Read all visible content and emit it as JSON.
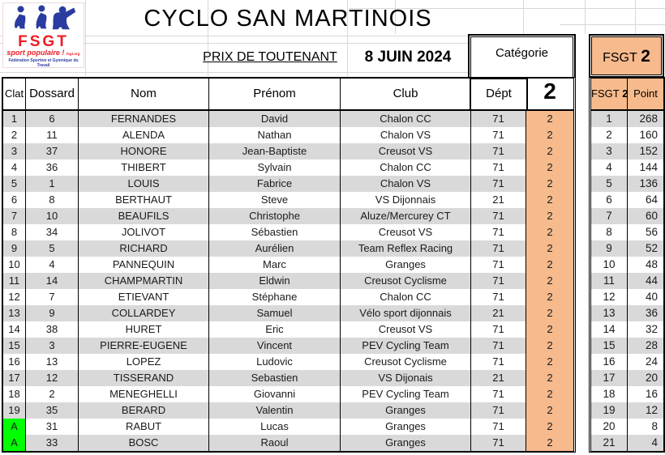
{
  "header": {
    "title": "CYCLO SAN MARTINOIS",
    "race_name": "PRIX DE TOUTENANT",
    "date": "8 JUIN 2024"
  },
  "logo": {
    "acronym": "FSGT",
    "slogan": "sport populaire !",
    "website": "fsgt.org",
    "full_name": "Fédération Sportive et Gymnique du Travail"
  },
  "category_box": {
    "label": "Catégorie",
    "value": "2"
  },
  "table": {
    "headers": {
      "clat": "Clat",
      "dossard": "Dossard",
      "nom": "Nom",
      "prenom": "Prénom",
      "club": "Club",
      "dept": "Dépt"
    },
    "rows": [
      {
        "clat": "1",
        "dossard": "6",
        "nom": "FERNANDES",
        "prenom": "David",
        "club": "Chalon CC",
        "dept": "71",
        "cat": "2"
      },
      {
        "clat": "2",
        "dossard": "11",
        "nom": "ALENDA",
        "prenom": "Nathan",
        "club": "Chalon VS",
        "dept": "71",
        "cat": "2"
      },
      {
        "clat": "3",
        "dossard": "37",
        "nom": "HONORE",
        "prenom": "Jean-Baptiste",
        "club": "Creusot VS",
        "dept": "71",
        "cat": "2"
      },
      {
        "clat": "4",
        "dossard": "36",
        "nom": "THIBERT",
        "prenom": "Sylvain",
        "club": "Chalon CC",
        "dept": "71",
        "cat": "2"
      },
      {
        "clat": "5",
        "dossard": "1",
        "nom": "LOUIS",
        "prenom": "Fabrice",
        "club": "Chalon VS",
        "dept": "71",
        "cat": "2"
      },
      {
        "clat": "6",
        "dossard": "8",
        "nom": "BERTHAUT",
        "prenom": "Steve",
        "club": "VS Dijonnais",
        "dept": "21",
        "cat": "2"
      },
      {
        "clat": "7",
        "dossard": "10",
        "nom": "BEAUFILS",
        "prenom": "Christophe",
        "club": "Aluze/Mercurey CT",
        "dept": "71",
        "cat": "2"
      },
      {
        "clat": "8",
        "dossard": "34",
        "nom": "JOLIVOT",
        "prenom": "Sébastien",
        "club": "Creusot VS",
        "dept": "71",
        "cat": "2"
      },
      {
        "clat": "9",
        "dossard": "5",
        "nom": "RICHARD",
        "prenom": "Aurélien",
        "club": "Team Reflex Racing",
        "dept": "71",
        "cat": "2"
      },
      {
        "clat": "10",
        "dossard": "4",
        "nom": "PANNEQUIN",
        "prenom": "Marc",
        "club": "Granges",
        "dept": "71",
        "cat": "2"
      },
      {
        "clat": "11",
        "dossard": "14",
        "nom": "CHAMPMARTIN",
        "prenom": "Eldwin",
        "club": "Creusot Cyclisme",
        "dept": "71",
        "cat": "2"
      },
      {
        "clat": "12",
        "dossard": "7",
        "nom": "ETIEVANT",
        "prenom": "Stéphane",
        "club": "Chalon CC",
        "dept": "71",
        "cat": "2"
      },
      {
        "clat": "13",
        "dossard": "9",
        "nom": "COLLARDEY",
        "prenom": "Samuel",
        "club": "Vélo sport dijonnais",
        "dept": "21",
        "cat": "2"
      },
      {
        "clat": "14",
        "dossard": "38",
        "nom": "HURET",
        "prenom": "Eric",
        "club": "Creusot VS",
        "dept": "71",
        "cat": "2"
      },
      {
        "clat": "15",
        "dossard": "3",
        "nom": "PIERRE-EUGENE",
        "prenom": "Vincent",
        "club": "PEV Cycling Team",
        "dept": "71",
        "cat": "2"
      },
      {
        "clat": "16",
        "dossard": "13",
        "nom": "LOPEZ",
        "prenom": "Ludovic",
        "club": "Creusot Cyclisme",
        "dept": "71",
        "cat": "2"
      },
      {
        "clat": "17",
        "dossard": "12",
        "nom": "TISSERAND",
        "prenom": "Sebastien",
        "club": "VS Dijonais",
        "dept": "21",
        "cat": "2"
      },
      {
        "clat": "18",
        "dossard": "2",
        "nom": "MENEGHELLI",
        "prenom": "Giovanni",
        "club": "PEV Cycling Team",
        "dept": "71",
        "cat": "2"
      },
      {
        "clat": "19",
        "dossard": "35",
        "nom": "BERARD",
        "prenom": "Valentin",
        "club": "Granges",
        "dept": "71",
        "cat": "2"
      },
      {
        "clat": "A",
        "dossard": "31",
        "nom": "RABUT",
        "prenom": "Lucas",
        "club": "Granges",
        "dept": "71",
        "cat": "2"
      },
      {
        "clat": "A",
        "dossard": "33",
        "nom": "BOSC",
        "prenom": "Raoul",
        "club": "Granges",
        "dept": "71",
        "cat": "2"
      }
    ]
  },
  "right_panel": {
    "box_label": "FSGT",
    "box_value": "2",
    "col1_label": "FSGT",
    "col1_value": "2",
    "col2_label": "Point",
    "rows": [
      {
        "rank": "1",
        "points": "268"
      },
      {
        "rank": "2",
        "points": "160"
      },
      {
        "rank": "3",
        "points": "152"
      },
      {
        "rank": "4",
        "points": "144"
      },
      {
        "rank": "5",
        "points": "136"
      },
      {
        "rank": "6",
        "points": "64"
      },
      {
        "rank": "7",
        "points": "60"
      },
      {
        "rank": "8",
        "points": "56"
      },
      {
        "rank": "9",
        "points": "52"
      },
      {
        "rank": "10",
        "points": "48"
      },
      {
        "rank": "11",
        "points": "44"
      },
      {
        "rank": "12",
        "points": "40"
      },
      {
        "rank": "13",
        "points": "36"
      },
      {
        "rank": "14",
        "points": "32"
      },
      {
        "rank": "15",
        "points": "28"
      },
      {
        "rank": "16",
        "points": "24"
      },
      {
        "rank": "17",
        "points": "20"
      },
      {
        "rank": "18",
        "points": "16"
      },
      {
        "rank": "19",
        "points": "12"
      },
      {
        "rank": "20",
        "points": "8"
      },
      {
        "rank": "21",
        "points": "4"
      }
    ]
  },
  "colors": {
    "category_fill": "#f6ba8c",
    "row_stripe": "#d9d9d9",
    "abandon_green": "#00ff00",
    "logo_red": "#ee1c25",
    "logo_blue": "#2b3ca0"
  }
}
